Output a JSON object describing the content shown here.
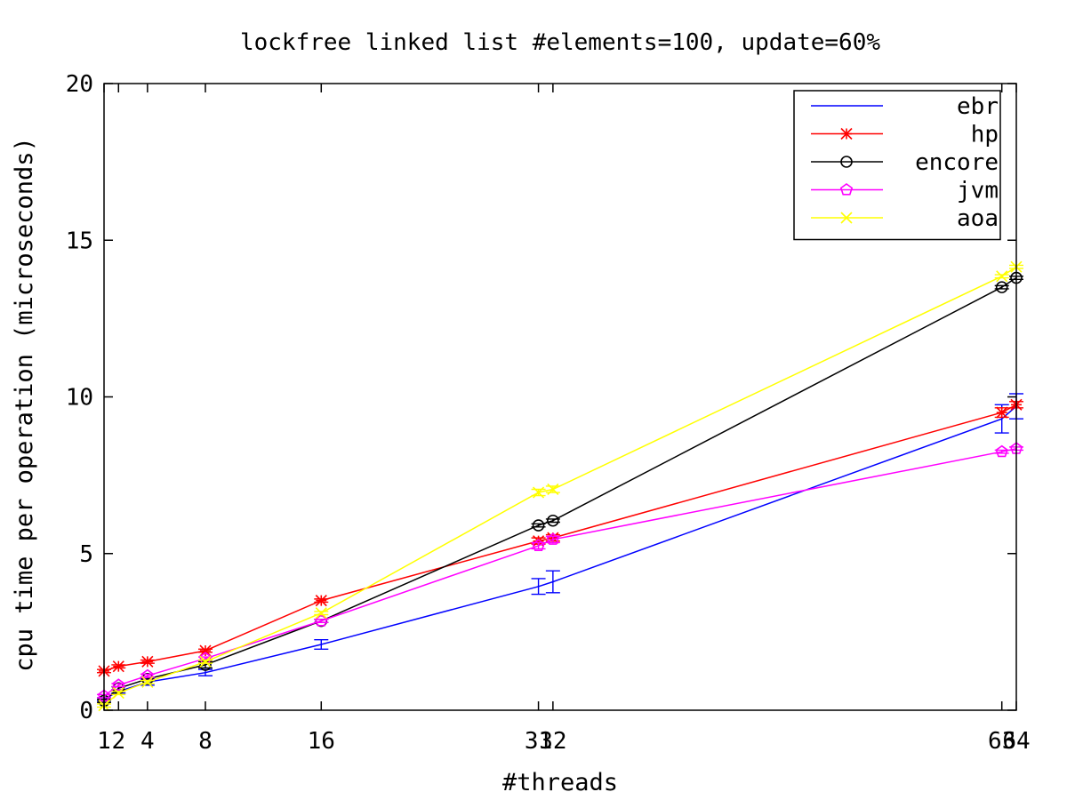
{
  "chart_data": {
    "type": "line",
    "title": "lockfree linked list #elements=100, update=60%",
    "xlabel": "#threads",
    "ylabel": "cpu time per operation (microseconds)",
    "xlim": [
      1,
      64
    ],
    "ylim": [
      0,
      20
    ],
    "x_ticks": [
      1,
      2,
      4,
      8,
      16,
      31,
      32,
      63,
      64
    ],
    "y_ticks": [
      0,
      5,
      10,
      15,
      20
    ],
    "grid": false,
    "legend_position": "top-right",
    "series": [
      {
        "name": "ebr",
        "color": "#0000ff",
        "marker": "none",
        "x": [
          1,
          2,
          4,
          8,
          16,
          31,
          32,
          63,
          64
        ],
        "y": [
          0.35,
          0.6,
          0.9,
          1.2,
          2.1,
          3.95,
          4.1,
          9.3,
          9.7
        ],
        "err": [
          0.05,
          0.05,
          0.1,
          0.1,
          0.15,
          0.25,
          0.35,
          0.45,
          0.4
        ]
      },
      {
        "name": "hp",
        "color": "#ff0000",
        "marker": "star",
        "x": [
          1,
          2,
          4,
          8,
          16,
          31,
          32,
          63,
          64
        ],
        "y": [
          1.25,
          1.4,
          1.55,
          1.9,
          3.5,
          5.4,
          5.5,
          9.5,
          9.75
        ],
        "err": [
          0.05,
          0.05,
          0.05,
          0.05,
          0.05,
          0.1,
          0.1,
          0.15,
          0.1
        ]
      },
      {
        "name": "encore",
        "color": "#000000",
        "marker": "circle",
        "x": [
          1,
          2,
          4,
          8,
          16,
          31,
          32,
          63,
          64
        ],
        "y": [
          0.3,
          0.7,
          1.0,
          1.45,
          2.85,
          5.9,
          6.05,
          13.5,
          13.8
        ],
        "err": [
          0.05,
          0.05,
          0.05,
          0.1,
          0.05,
          0.05,
          0.05,
          0.05,
          0.05
        ]
      },
      {
        "name": "jvm",
        "color": "#ff00ff",
        "marker": "pentagon",
        "x": [
          1,
          2,
          4,
          8,
          16,
          31,
          32,
          63,
          64
        ],
        "y": [
          0.45,
          0.8,
          1.1,
          1.65,
          2.85,
          5.25,
          5.45,
          8.25,
          8.35
        ],
        "err": [
          0.05,
          0.05,
          0.05,
          0.05,
          0.05,
          0.1,
          0.1,
          0.05,
          0.05
        ]
      },
      {
        "name": "aoa",
        "color": "#ffff00",
        "marker": "x",
        "x": [
          1,
          2,
          4,
          8,
          16,
          31,
          32,
          63,
          64
        ],
        "y": [
          0.15,
          0.55,
          0.9,
          1.55,
          3.1,
          6.95,
          7.05,
          13.85,
          14.15
        ],
        "err": [
          0.05,
          0.05,
          0.05,
          0.05,
          0.05,
          0.1,
          0.1,
          0.05,
          0.05
        ]
      }
    ]
  }
}
